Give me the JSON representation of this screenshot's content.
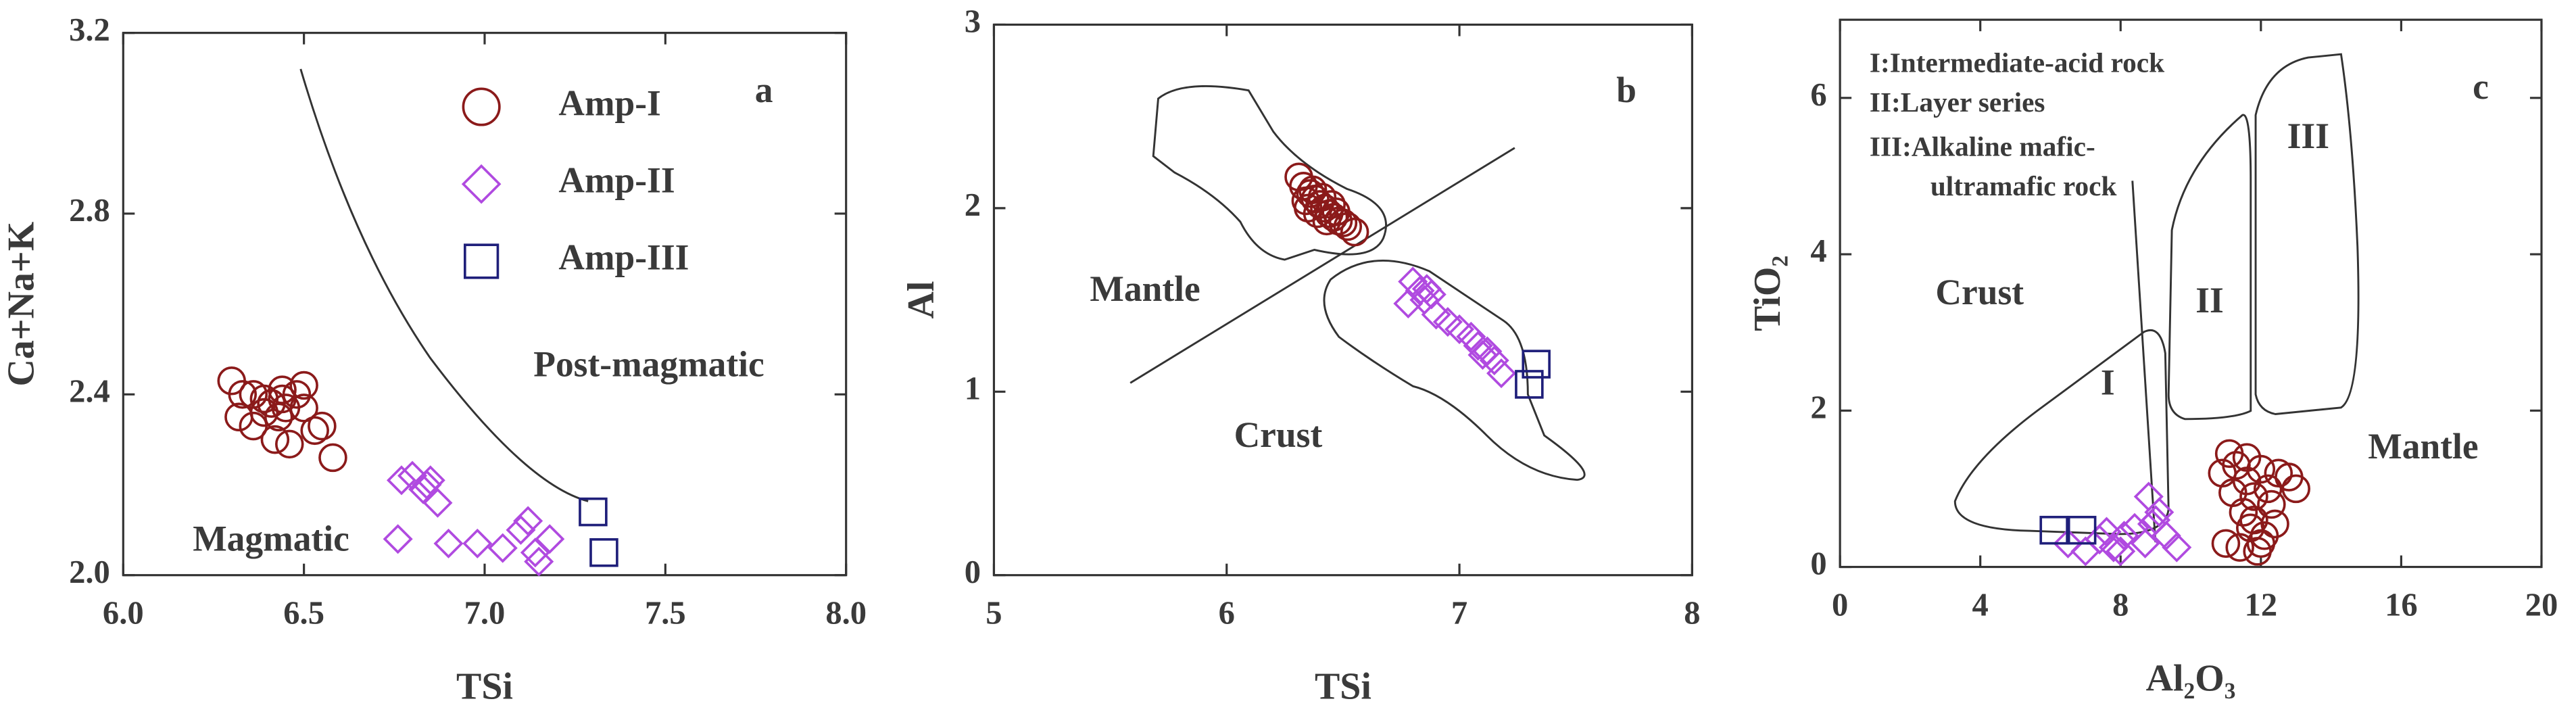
{
  "chart_data": [
    {
      "type": "scatter",
      "x_label": "TSi",
      "y_label": "Ca+Na+K",
      "xlim": [
        6,
        8
      ],
      "ylim": [
        2,
        3.2
      ],
      "xticks": [
        {
          "value": 6,
          "label": "6.0"
        },
        {
          "value": 6.5,
          "label": "6.5"
        },
        {
          "value": 7,
          "label": "7.0"
        },
        {
          "value": 7.5,
          "label": "7.5"
        },
        {
          "value": 8,
          "label": "8.0"
        }
      ],
      "yticks": [
        {
          "value": 2,
          "label": "2.0"
        },
        {
          "value": 2.4,
          "label": "2.4"
        },
        {
          "value": 2.8,
          "label": "2.8"
        },
        {
          "value": 3.2,
          "label": "3.2"
        }
      ],
      "annotations": [
        "a",
        "Magmatic",
        "Post-magmatic"
      ],
      "legend": true,
      "series": [
        {
          "name": "Amp-I",
          "color": "#8b1a1a",
          "marker": "circle",
          "x": [
            6.3,
            6.33,
            6.39,
            6.44,
            6.5,
            6.43,
            6.36,
            6.42,
            6.46,
            6.55,
            6.58,
            6.45,
            6.5,
            6.32,
            6.39,
            6.44,
            6.36,
            6.48,
            6.41,
            6.53
          ],
          "y": [
            2.43,
            2.4,
            2.39,
            2.41,
            2.42,
            2.35,
            2.33,
            2.3,
            2.29,
            2.33,
            2.26,
            2.37,
            2.37,
            2.35,
            2.36,
            2.39,
            2.4,
            2.4,
            2.38,
            2.32
          ]
        },
        {
          "name": "Amp-II",
          "color": "#b04ae0",
          "marker": "diamond",
          "x": [
            6.76,
            6.77,
            6.8,
            6.83,
            6.85,
            6.87,
            6.9,
            6.98,
            7.05,
            7.1,
            7.12,
            7.14,
            7.15,
            7.18,
            6.84
          ],
          "y": [
            2.08,
            2.21,
            2.22,
            2.19,
            2.21,
            2.16,
            2.07,
            2.07,
            2.06,
            2.1,
            2.12,
            2.05,
            2.03,
            2.08,
            2.2
          ]
        },
        {
          "name": "Amp-III",
          "color": "#1f1f7a",
          "marker": "square",
          "x": [
            7.3,
            7.33
          ],
          "y": [
            2.14,
            2.05
          ]
        }
      ]
    },
    {
      "type": "scatter",
      "x_label": "TSi",
      "y_label": "Al",
      "xlim": [
        5,
        8
      ],
      "ylim": [
        0,
        3
      ],
      "xticks": [
        5,
        6,
        7,
        8
      ],
      "yticks": [
        0,
        1,
        2,
        3
      ],
      "annotations": [
        "b",
        "Mantle",
        "Crust"
      ],
      "legend": false,
      "series": [
        {
          "color": "#8b1a1a",
          "marker": "circle",
          "x": [
            6.31,
            6.33,
            6.36,
            6.38,
            6.4,
            6.42,
            6.44,
            6.46,
            6.48,
            6.5,
            6.52,
            6.55,
            6.35,
            6.39,
            6.43,
            6.47,
            6.34,
            6.41,
            6.45,
            6.37
          ],
          "y": [
            2.17,
            2.12,
            2.08,
            2.05,
            2.02,
            2.0,
            1.97,
            1.95,
            1.93,
            1.92,
            1.9,
            1.87,
            2.0,
            1.97,
            1.93,
            1.98,
            2.04,
            2.06,
            2.02,
            2.1
          ]
        },
        {
          "color": "#b04ae0",
          "marker": "diamond",
          "x": [
            6.78,
            6.8,
            6.83,
            6.85,
            6.88,
            6.9,
            6.95,
            7.0,
            7.05,
            7.08,
            7.1,
            7.12,
            7.15,
            7.18,
            6.86
          ],
          "y": [
            1.48,
            1.6,
            1.55,
            1.5,
            1.53,
            1.42,
            1.38,
            1.34,
            1.3,
            1.25,
            1.2,
            1.22,
            1.17,
            1.1,
            1.56
          ]
        },
        {
          "color": "#1f1f7a",
          "marker": "square",
          "x": [
            7.3,
            7.33
          ],
          "y": [
            1.04,
            1.15
          ]
        }
      ]
    },
    {
      "type": "scatter",
      "x_label": "Al₂O₃",
      "y_label": "TiO₂",
      "xlim": [
        0,
        20
      ],
      "ylim": [
        0,
        7
      ],
      "xticks": [
        0,
        4,
        8,
        12,
        16,
        20
      ],
      "yticks": [
        0,
        2,
        4,
        6
      ],
      "annotations": [
        "c",
        "I:Intermediate-acid rock",
        "II:Layer series",
        "III:Alkaline mafic-",
        "ultramafic rock",
        "Crust",
        "Mantle",
        "I",
        "II",
        "III"
      ],
      "legend": false,
      "series": [
        {
          "color": "#8b1a1a",
          "marker": "circle",
          "x": [
            10.9,
            11.1,
            11.3,
            11.6,
            11.8,
            12.0,
            12.2,
            12.5,
            12.8,
            13.0,
            11.0,
            11.4,
            11.7,
            12.1,
            11.9,
            11.5,
            12.3,
            11.2,
            11.8,
            12.0,
            11.6,
            12.4
          ],
          "y": [
            1.2,
            1.45,
            1.3,
            1.1,
            0.9,
            1.25,
            1.0,
            1.2,
            1.15,
            1.0,
            0.3,
            0.25,
            0.5,
            0.4,
            0.2,
            0.7,
            0.8,
            0.95,
            0.6,
            0.3,
            1.4,
            0.55
          ]
        },
        {
          "color": "#b04ae0",
          "marker": "diamond",
          "x": [
            6.5,
            7.0,
            7.4,
            7.8,
            8.1,
            8.4,
            8.7,
            8.9,
            9.1,
            9.3,
            9.6,
            8.0,
            8.8,
            7.6,
            9.0
          ],
          "y": [
            0.3,
            0.2,
            0.35,
            0.25,
            0.4,
            0.5,
            0.3,
            0.55,
            0.7,
            0.4,
            0.25,
            0.2,
            0.9,
            0.45,
            0.6
          ]
        },
        {
          "color": "#1f1f7a",
          "marker": "square",
          "x": [
            6.1,
            6.9
          ],
          "y": [
            0.47,
            0.47
          ]
        }
      ]
    }
  ]
}
